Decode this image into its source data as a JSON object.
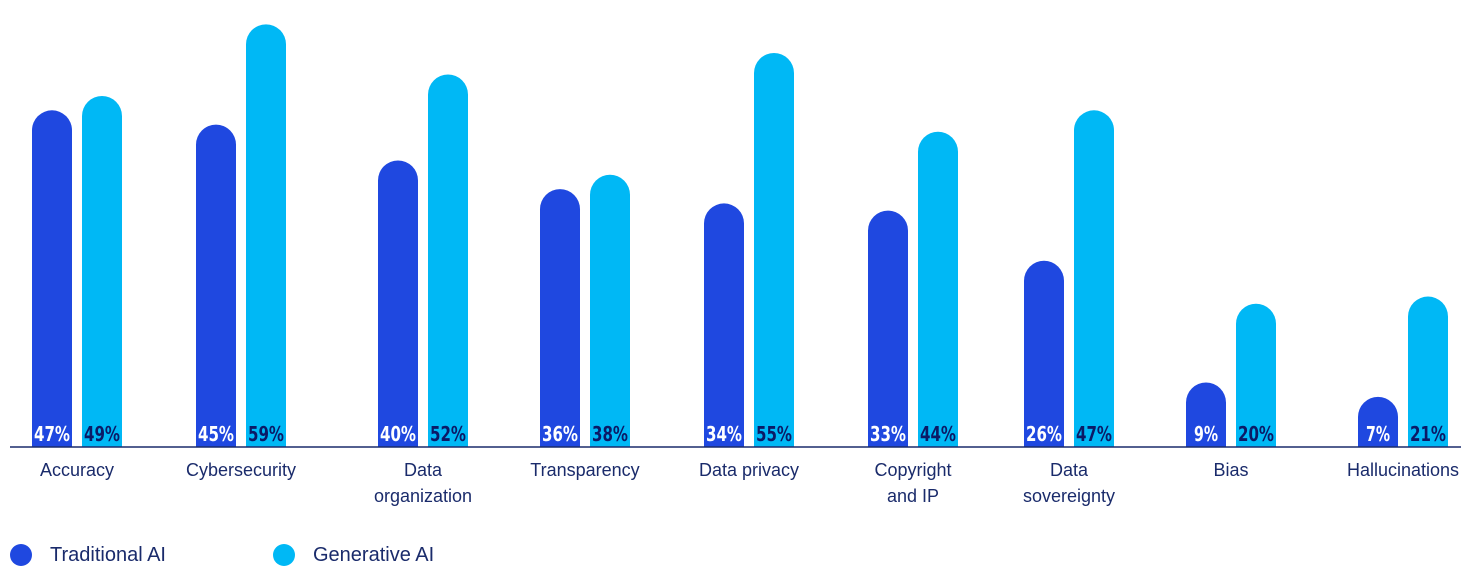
{
  "colors": {
    "traditional": "#1f48e0",
    "generative": "#00b8f5",
    "axis": "#1a2b6b"
  },
  "legend": {
    "traditional_label": "Traditional AI",
    "generative_label": "Generative AI"
  },
  "chart_data": {
    "type": "bar",
    "categories": [
      [
        "Accuracy"
      ],
      [
        "Cybersecurity"
      ],
      [
        "Data",
        "organization"
      ],
      [
        "Transparency"
      ],
      [
        "Data privacy"
      ],
      [
        "Copyright",
        "and IP"
      ],
      [
        "Data",
        "sovereignty"
      ],
      [
        "Bias"
      ],
      [
        "Hallucinations"
      ]
    ],
    "series": [
      {
        "name": "Traditional AI",
        "values": [
          47,
          45,
          40,
          36,
          34,
          33,
          26,
          9,
          7
        ],
        "labels": [
          "47%",
          "45%",
          "40%",
          "36%",
          "34%",
          "33%",
          "26%",
          "9%",
          "7%"
        ]
      },
      {
        "name": "Generative AI",
        "values": [
          49,
          59,
          52,
          38,
          55,
          44,
          47,
          20,
          21
        ],
        "labels": [
          "49%",
          "59%",
          "52%",
          "38%",
          "55%",
          "44%",
          "47%",
          "20%",
          "21%"
        ]
      }
    ],
    "ylim": [
      0,
      61
    ]
  }
}
